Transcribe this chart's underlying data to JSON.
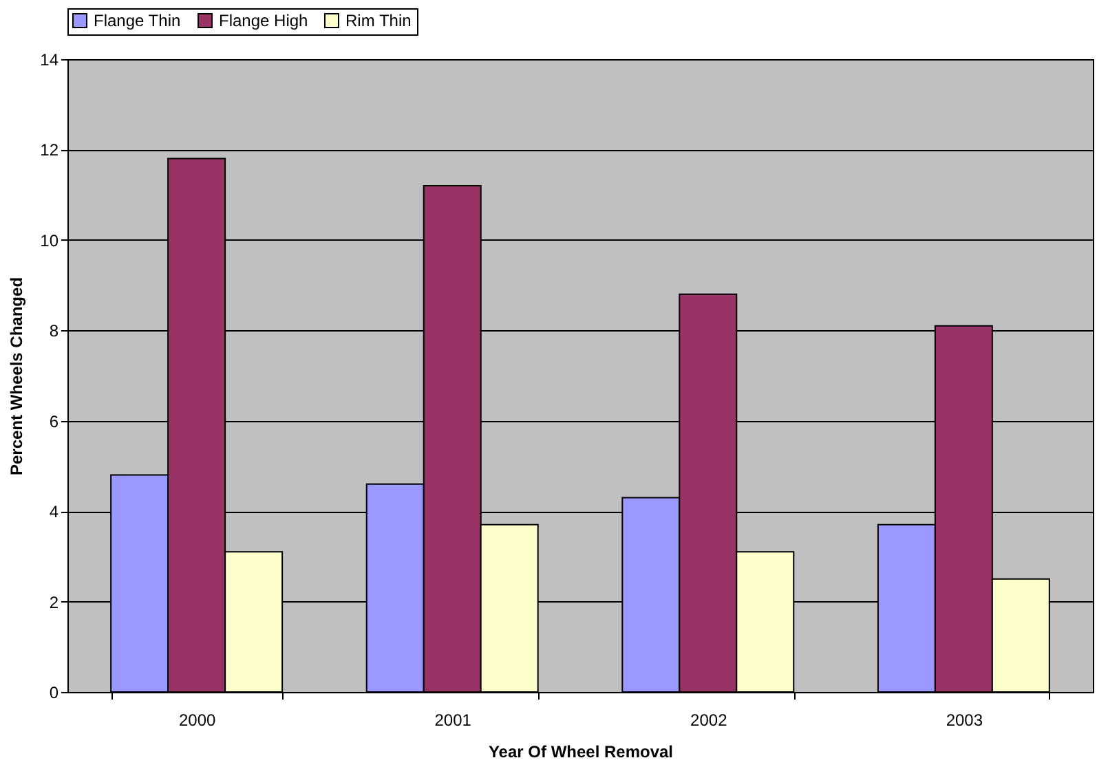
{
  "chart_data": {
    "type": "bar",
    "xlabel": "Year Of Wheel Removal",
    "ylabel": "Percent Wheels Changed",
    "categories": [
      "2000",
      "2001",
      "2002",
      "2003"
    ],
    "series": [
      {
        "name": "Flange Thin",
        "color": "#9999ff",
        "values": [
          4.8,
          4.6,
          4.3,
          3.7
        ]
      },
      {
        "name": "Flange High",
        "color": "#993366",
        "values": [
          11.8,
          11.2,
          8.8,
          8.1
        ]
      },
      {
        "name": "Rim Thin",
        "color": "#ffffcc",
        "values": [
          3.1,
          3.7,
          3.1,
          2.5
        ]
      }
    ],
    "ylim": [
      0,
      14
    ],
    "yticks": [
      0,
      2,
      4,
      6,
      8,
      10,
      12,
      14
    ],
    "grid": "y",
    "legend": "top"
  }
}
